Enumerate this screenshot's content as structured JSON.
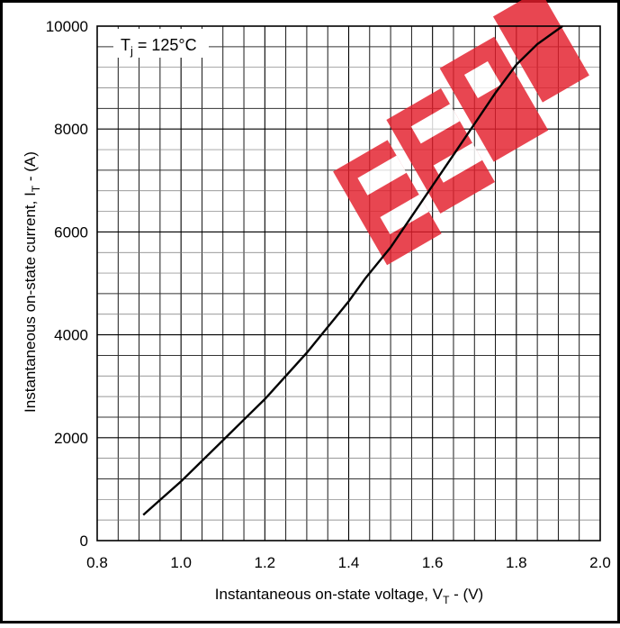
{
  "chart_data": {
    "type": "line",
    "annotation": {
      "base": "T",
      "sub": "j",
      "rest": " = 125°C"
    },
    "xlabel": {
      "main": "Instantaneous on-state voltage, V",
      "sub": "T",
      "tail": " - (V)"
    },
    "ylabel": {
      "main": "Instantaneous on-state current, I",
      "sub": "T",
      "tail": " - (A)"
    },
    "xlim": [
      0.8,
      2.0
    ],
    "ylim": [
      0,
      10000
    ],
    "x_ticks": [
      "0.8",
      "1.0",
      "1.2",
      "1.4",
      "1.6",
      "1.8",
      "2.0"
    ],
    "y_ticks": [
      "0",
      "2000",
      "4000",
      "6000",
      "8000",
      "10000"
    ],
    "grid": true,
    "watermark": "EEPW",
    "series": [
      {
        "x": [
          0.91,
          0.95,
          1.0,
          1.05,
          1.1,
          1.15,
          1.2,
          1.25,
          1.3,
          1.35,
          1.4,
          1.44,
          1.5,
          1.55,
          1.6,
          1.65,
          1.7,
          1.75,
          1.8,
          1.85,
          1.91
        ],
        "y": [
          500,
          790,
          1150,
          1550,
          1950,
          2350,
          2750,
          3200,
          3650,
          4150,
          4650,
          5100,
          5700,
          6300,
          6900,
          7500,
          8100,
          8700,
          9250,
          9650,
          10000
        ]
      }
    ],
    "colors": {
      "curve": "#000000",
      "grid": "#000000",
      "watermark": "#e41e2b"
    }
  }
}
